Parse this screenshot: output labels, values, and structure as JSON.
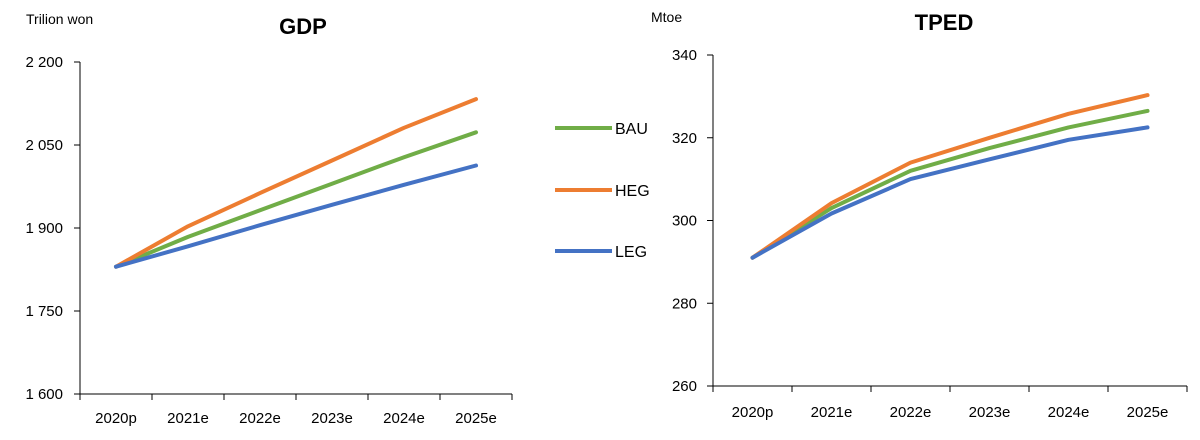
{
  "chart_data": [
    {
      "type": "line",
      "title": "GDP",
      "ylabel": "Trilion won",
      "xlabel": "",
      "categories": [
        "2020p",
        "2021e",
        "2022e",
        "2023e",
        "2024e",
        "2025e"
      ],
      "ylim": [
        1600,
        2200
      ],
      "yticks": [
        1600,
        1750,
        1900,
        2050,
        2200
      ],
      "ytick_labels": [
        "1 600",
        "1 750",
        "1 900",
        "2 050",
        "2 200"
      ],
      "grid": false,
      "series": [
        {
          "name": "BAU",
          "color": "#70AD47",
          "values": [
            1830,
            1884,
            1932,
            1980,
            2028,
            2073
          ]
        },
        {
          "name": "HEG",
          "color": "#ED7D31",
          "values": [
            1830,
            1903,
            1963,
            2022,
            2081,
            2133
          ]
        },
        {
          "name": "LEG",
          "color": "#4472C4",
          "values": [
            1830,
            1867,
            1905,
            1942,
            1978,
            2013
          ]
        }
      ]
    },
    {
      "type": "line",
      "title": "TPED",
      "ylabel": "Mtoe",
      "xlabel": "",
      "categories": [
        "2020p",
        "2021e",
        "2022e",
        "2023e",
        "2024e",
        "2025e"
      ],
      "ylim": [
        260,
        340
      ],
      "yticks": [
        260,
        280,
        300,
        320,
        340
      ],
      "ytick_labels": [
        "260",
        "280",
        "300",
        "320",
        "340"
      ],
      "grid": false,
      "series": [
        {
          "name": "BAU",
          "color": "#70AD47",
          "values": [
            291,
            303,
            312,
            317.5,
            322.5,
            326.5
          ]
        },
        {
          "name": "HEG",
          "color": "#ED7D31",
          "values": [
            291,
            304.2,
            314,
            320,
            325.8,
            330.3
          ]
        },
        {
          "name": "LEG",
          "color": "#4472C4",
          "values": [
            291,
            301.7,
            310,
            314.8,
            319.5,
            322.5
          ]
        }
      ]
    }
  ],
  "legend": {
    "placement": "center-between-charts",
    "items": [
      {
        "label": "BAU",
        "color": "#70AD47"
      },
      {
        "label": "HEG",
        "color": "#ED7D31"
      },
      {
        "label": "LEG",
        "color": "#4472C4"
      }
    ]
  }
}
